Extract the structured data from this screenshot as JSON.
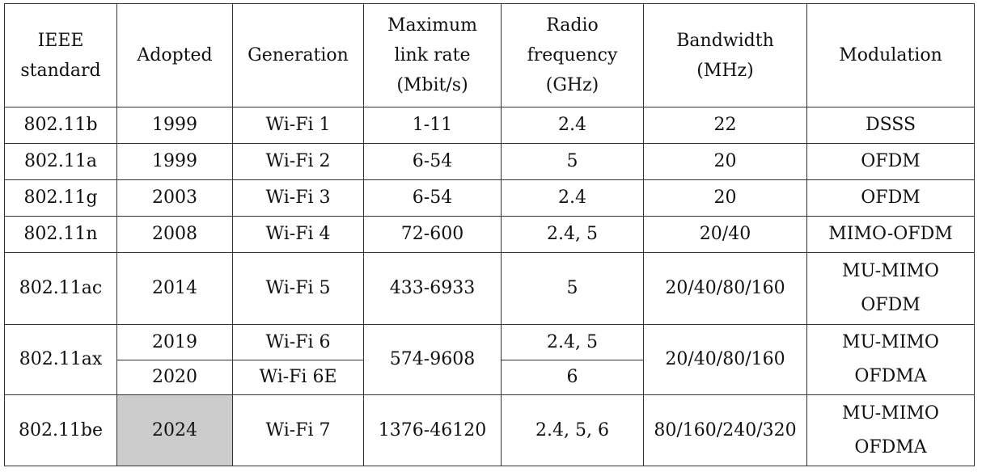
{
  "headers": {
    "standard": [
      "IEEE",
      "standard"
    ],
    "adopted": "Adopted",
    "generation": "Generation",
    "rate": [
      "Maximum",
      "link rate",
      "(Mbit/s)"
    ],
    "freq": [
      "Radio",
      "frequency",
      "(GHz)"
    ],
    "bandwidth": [
      "Bandwidth",
      "(MHz)"
    ],
    "modulation": "Modulation"
  },
  "rows": {
    "b": {
      "std": "802.11b",
      "year": "1999",
      "gen": "Wi-Fi 1",
      "rate": "1-11",
      "freq": "2.4",
      "bw": "22",
      "mod": "DSSS"
    },
    "a": {
      "std": "802.11a",
      "year": "1999",
      "gen": "Wi-Fi 2",
      "rate": "6-54",
      "freq": "5",
      "bw": "20",
      "mod": "OFDM"
    },
    "g": {
      "std": "802.11g",
      "year": "2003",
      "gen": "Wi-Fi 3",
      "rate": "6-54",
      "freq": "2.4",
      "bw": "20",
      "mod": "OFDM"
    },
    "n": {
      "std": "802.11n",
      "year": "2008",
      "gen": "Wi-Fi 4",
      "rate": "72-600",
      "freq": "2.4, 5",
      "bw": "20/40",
      "mod": "MIMO-OFDM"
    },
    "ac": {
      "std": "802.11ac",
      "year": "2014",
      "gen": "Wi-Fi 5",
      "rate": "433-6933",
      "freq": "5",
      "bw": "20/40/80/160",
      "mod": [
        "MU-MIMO",
        "OFDM"
      ]
    },
    "ax": {
      "std": "802.11ax",
      "year": "2019",
      "gen": "Wi-Fi 6",
      "year2": "2020",
      "gen2": "Wi-Fi 6E",
      "rate": "574-9608",
      "freq": "2.4, 5",
      "freq2": "6",
      "bw": "20/40/80/160",
      "mod": [
        "MU-MIMO",
        "OFDMA"
      ]
    },
    "be": {
      "std": "802.11be",
      "year": "2024",
      "gen": "Wi-Fi 7",
      "rate": "1376-46120",
      "freq": "2.4, 5, 6",
      "bw": "80/160/240/320",
      "mod": [
        "MU-MIMO",
        "OFDMA"
      ]
    }
  },
  "highlight_color": "#cccccc"
}
